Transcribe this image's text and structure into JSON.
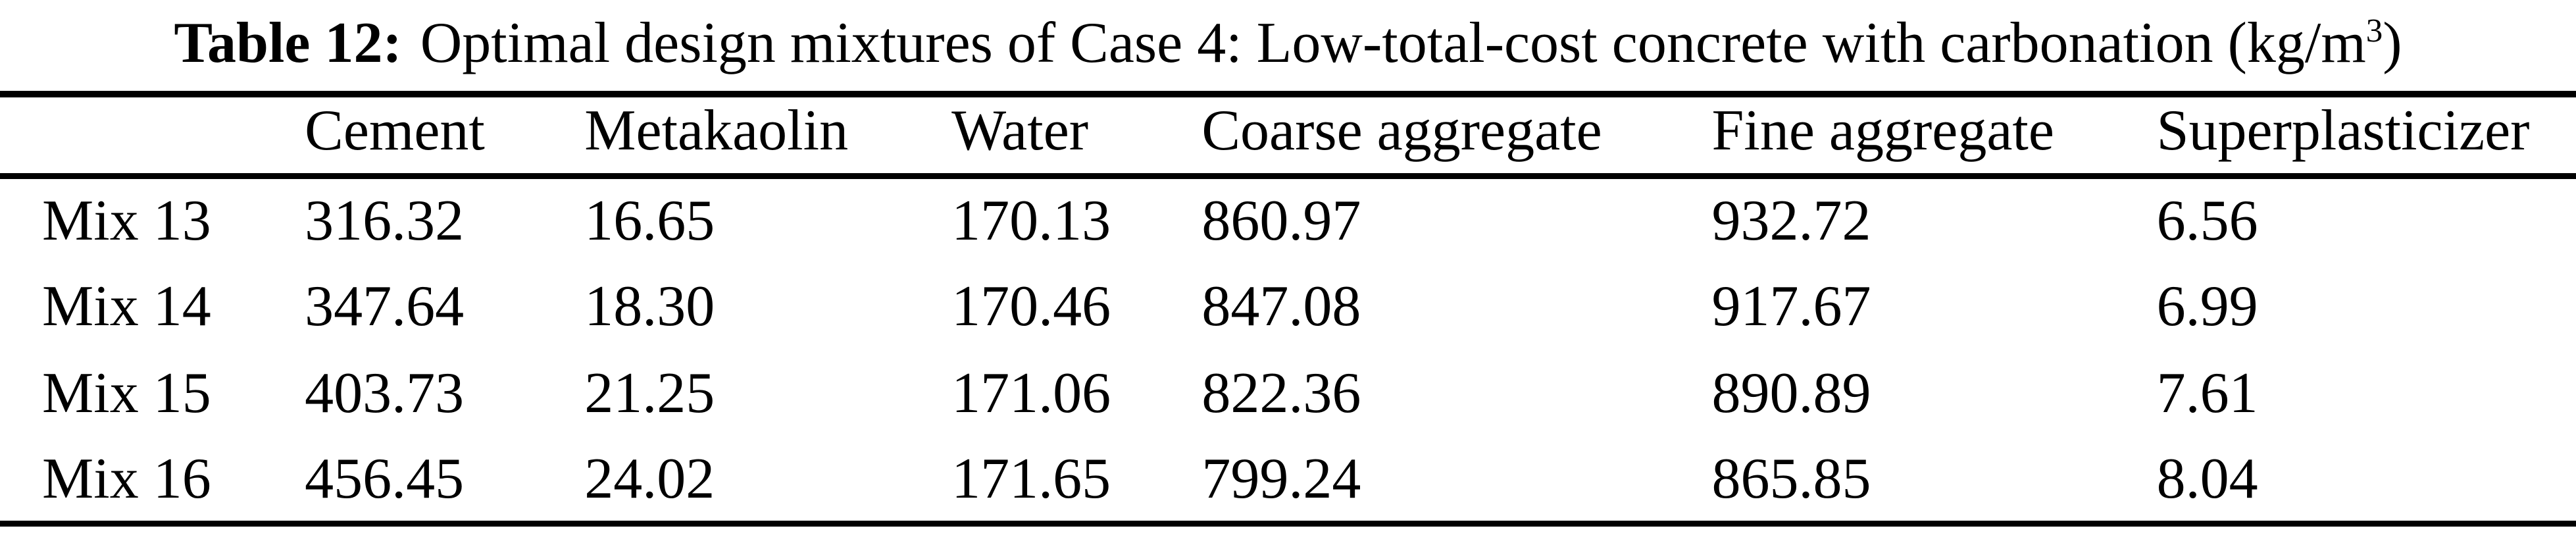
{
  "title": {
    "label": "Table 12:",
    "text": "Optimal design mixtures of Case 4: Low-total-cost concrete with carbonation",
    "unit_prefix": "(kg/m",
    "unit_superscript": "3",
    "unit_suffix": ")"
  },
  "table": {
    "columns": [
      "Cement",
      "Metakaolin",
      "Water",
      "Coarse aggregate",
      "Fine aggregate",
      "Superplasticizer"
    ],
    "rows": [
      {
        "label": "Mix 13",
        "values": [
          "316.32",
          "16.65",
          "170.13",
          "860.97",
          "932.72",
          "6.56"
        ]
      },
      {
        "label": "Mix 14",
        "values": [
          "347.64",
          "18.30",
          "170.46",
          "847.08",
          "917.67",
          "6.99"
        ]
      },
      {
        "label": "Mix 15",
        "values": [
          "403.73",
          "21.25",
          "171.06",
          "822.36",
          "890.89",
          "7.61"
        ]
      },
      {
        "label": "Mix 16",
        "values": [
          "456.45",
          "24.02",
          "171.65",
          "799.24",
          "865.85",
          "8.04"
        ]
      }
    ]
  },
  "colors": {
    "text": "#000000",
    "background": "#ffffff",
    "rule": "#000000"
  }
}
